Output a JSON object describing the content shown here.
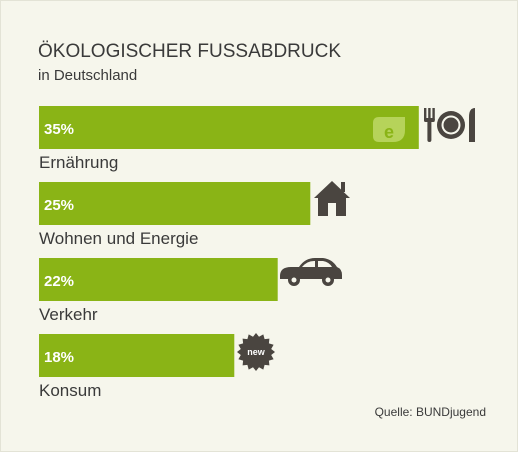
{
  "chart_data": {
    "type": "bar",
    "orientation": "horizontal",
    "title": "ÖKOLOGISCHER FUSSABDRUCK",
    "subtitle": "in Deutschland",
    "categories": [
      "Ernährung",
      "Wohnen und Energie",
      "Verkehr",
      "Konsum"
    ],
    "values": [
      35,
      25,
      22,
      18
    ],
    "value_labels": [
      "35%",
      "25%",
      "22%",
      "18%"
    ],
    "icons": [
      "cutlery-icon",
      "house-icon",
      "car-icon",
      "new-badge-icon"
    ],
    "icon_texts": {
      "new-badge-icon": "new"
    },
    "source": "Quelle: BUNDjugend",
    "colors": {
      "bar": "#8ab416",
      "icon": "#4a4540",
      "text": "#3a3a3a",
      "background": "#f6f6ec"
    }
  }
}
